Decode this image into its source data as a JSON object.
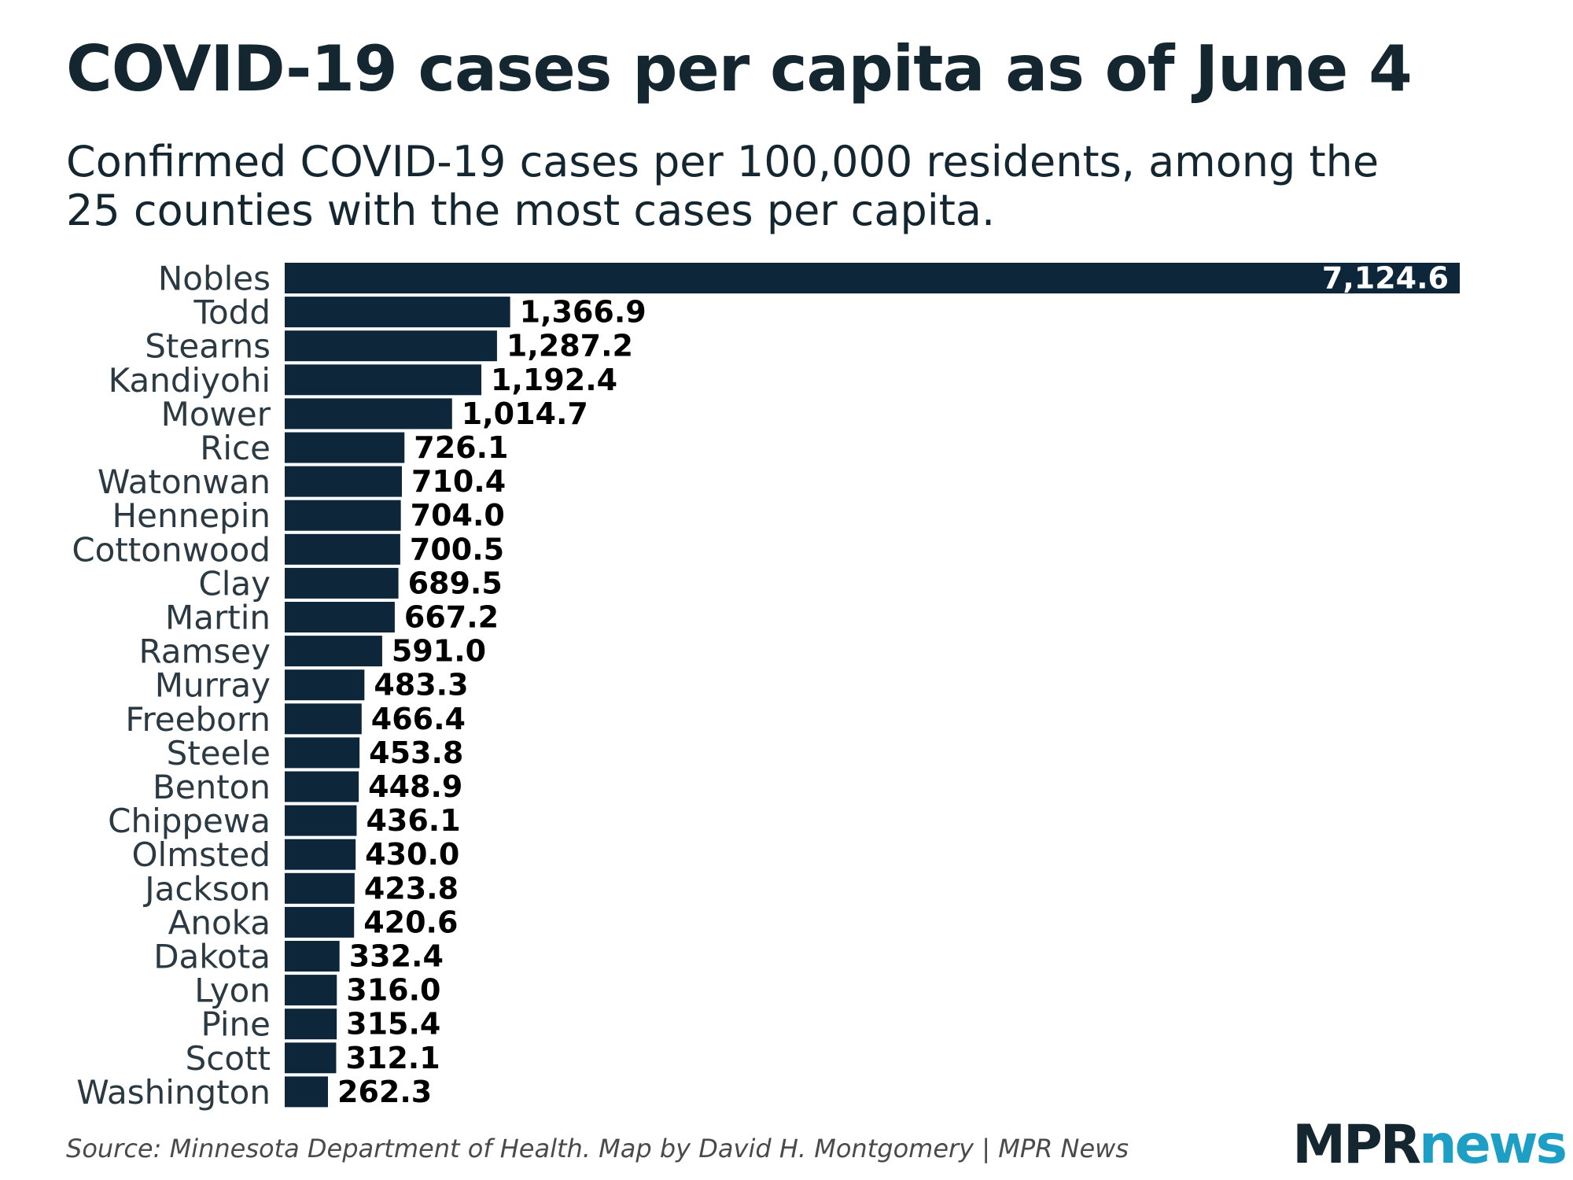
{
  "colors": {
    "bar": "#0e263a",
    "title": "#14262f",
    "label": "#2b3a42",
    "logo_dark": "#14262f",
    "logo_accent": "#1d9fc5"
  },
  "chart_data": {
    "type": "bar",
    "orientation": "horizontal",
    "title": "COVID-19 cases per capita as of June 4",
    "subtitle": "Confirmed COVID-19 cases per 100,000 residents, among the 25 counties with the most cases per capita.",
    "xlabel": "",
    "ylabel": "",
    "grid": false,
    "xlim": [
      0,
      7124.6
    ],
    "categories": [
      "Nobles",
      "Todd",
      "Stearns",
      "Kandiyohi",
      "Mower",
      "Rice",
      "Watonwan",
      "Hennepin",
      "Cottonwood",
      "Clay",
      "Martin",
      "Ramsey",
      "Murray",
      "Freeborn",
      "Steele",
      "Benton",
      "Chippewa",
      "Olmsted",
      "Jackson",
      "Anoka",
      "Dakota",
      "Lyon",
      "Pine",
      "Scott",
      "Washington"
    ],
    "values": [
      7124.6,
      1366.9,
      1287.2,
      1192.4,
      1014.7,
      726.1,
      710.4,
      704.0,
      700.5,
      689.5,
      667.2,
      591.0,
      483.3,
      466.4,
      453.8,
      448.9,
      436.1,
      430.0,
      423.8,
      420.6,
      332.4,
      316.0,
      315.4,
      312.1,
      262.3
    ],
    "value_labels": [
      "7,124.6",
      "1,366.9",
      "1,287.2",
      "1,192.4",
      "1,014.7",
      "726.1",
      "710.4",
      "704.0",
      "700.5",
      "689.5",
      "667.2",
      "591.0",
      "483.3",
      "466.4",
      "453.8",
      "448.9",
      "436.1",
      "430.0",
      "423.8",
      "420.6",
      "332.4",
      "316.0",
      "315.4",
      "312.1",
      "262.3"
    ]
  },
  "footer": {
    "source": "Source: Minnesota Department of Health. Map by David H. Montgomery | MPR News"
  },
  "logo": {
    "part1": "MPR",
    "part2": "news"
  }
}
